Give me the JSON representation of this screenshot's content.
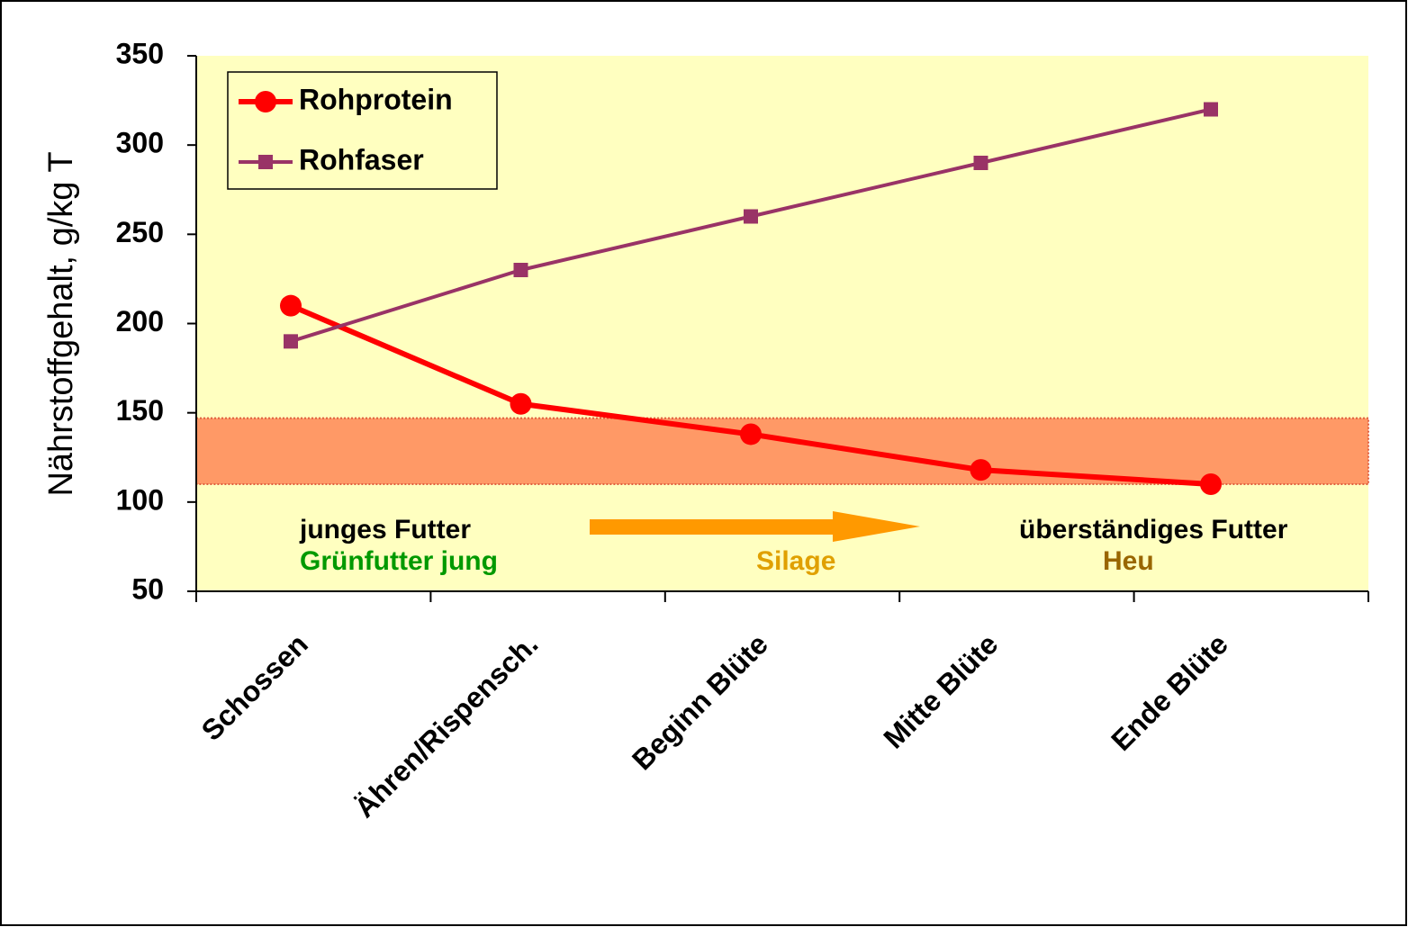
{
  "chart_data": {
    "type": "line",
    "y_axis_label": "Nährstoffgehalt, g/kg T",
    "categories": [
      "Schossen",
      "Ähren/Rispensch.",
      "Beginn Blüte",
      "Mitte Blüte",
      "Ende Blüte"
    ],
    "series": [
      {
        "name": "Rohprotein",
        "color": "#ff0000",
        "marker": "circle",
        "values": [
          210,
          155,
          138,
          118,
          110
        ]
      },
      {
        "name": "Rohfaser",
        "color": "#993366",
        "marker": "square",
        "values": [
          190,
          230,
          260,
          290,
          320
        ]
      }
    ],
    "ylim": [
      50,
      350
    ],
    "yticks": [
      50,
      100,
      150,
      200,
      250,
      300,
      350
    ],
    "highlight_band": {
      "range": [
        110,
        147
      ],
      "color": "#ff9966"
    },
    "annotations": [
      {
        "text": "junges Futter",
        "color": "#000000"
      },
      {
        "text": "Grünfutter jung",
        "color": "#009900"
      },
      {
        "text": "Silage",
        "color": "#e0a000"
      },
      {
        "text": "Heu",
        "color": "#996600"
      },
      {
        "text": "überständiges Futter",
        "color": "#000000"
      }
    ],
    "plot_background": "#ffffc0",
    "legend": "top-left"
  }
}
